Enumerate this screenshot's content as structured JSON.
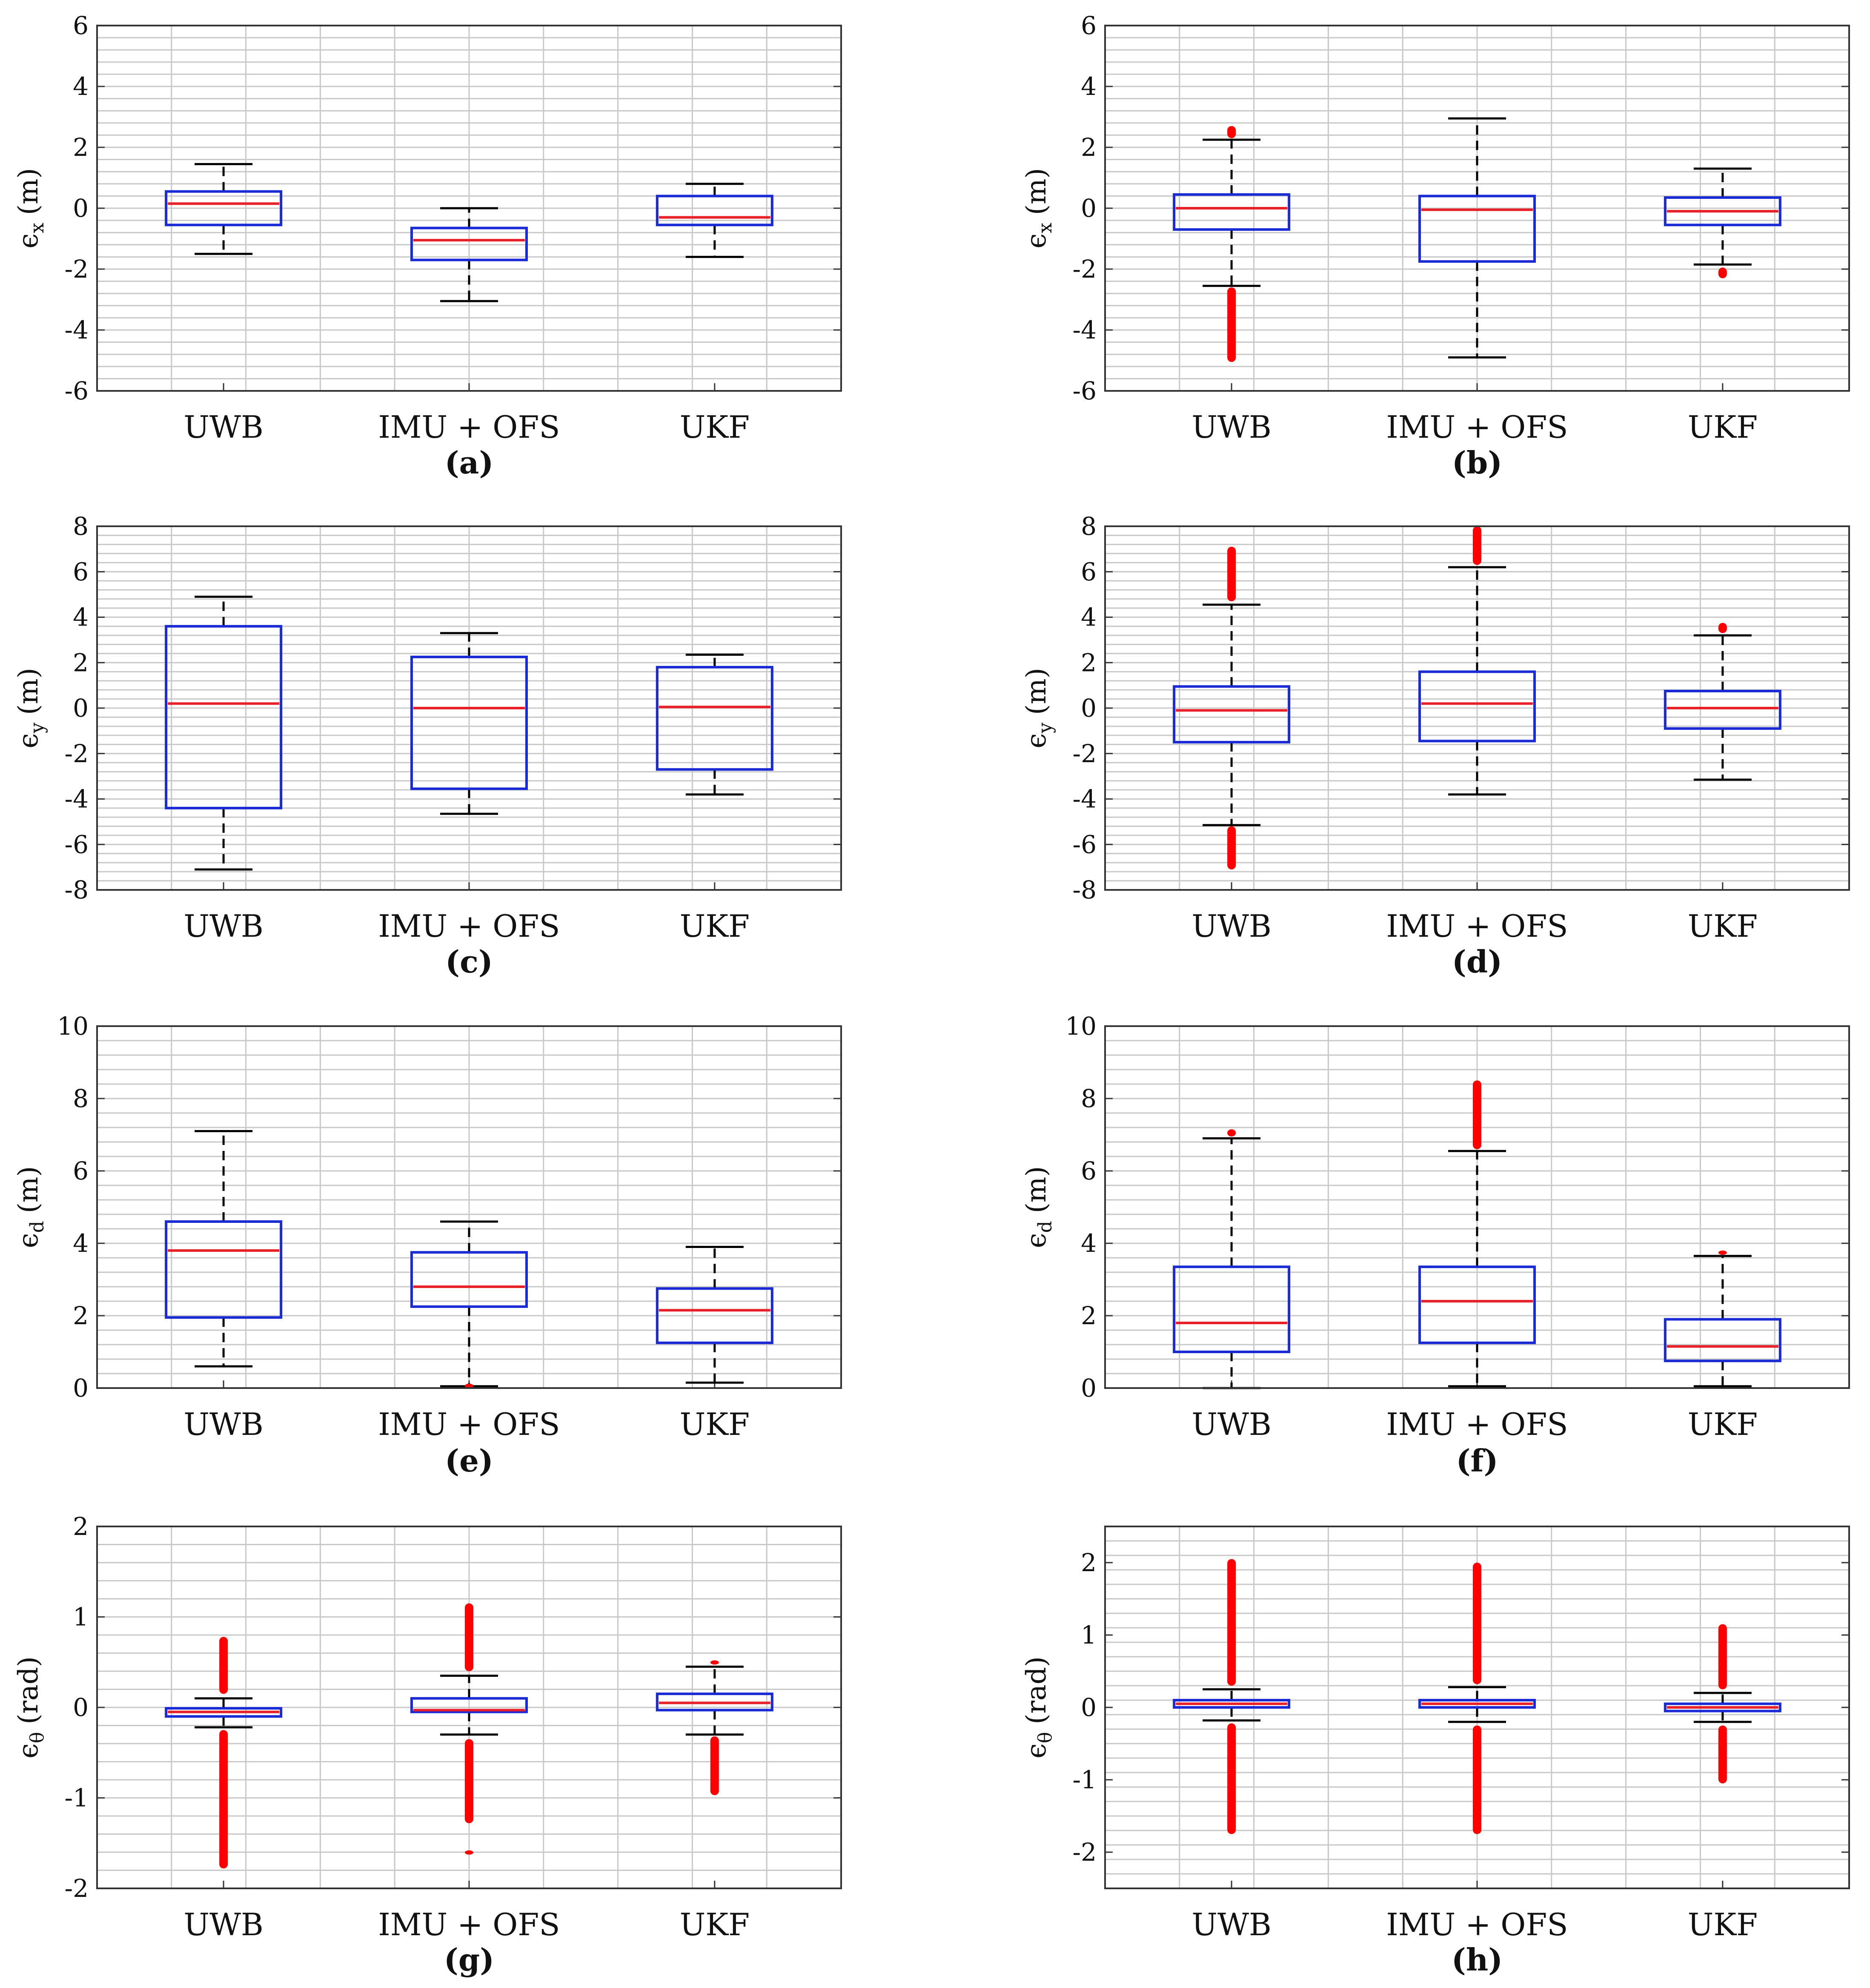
{
  "colors": {
    "box": "#1a2bd6",
    "median": "#e8202a",
    "whisker": "#000000",
    "outlier": "#ff0000",
    "grid": "#c8c8c8",
    "axes": "#333333"
  },
  "chart_data": [
    {
      "id": "a",
      "type": "box",
      "caption": "(a)",
      "ylabel_sym": "ϵ",
      "ylabel_sub": "x",
      "ylabel_unit": "(m)",
      "ylim": [
        -6,
        6
      ],
      "yticks": [
        -6,
        -4,
        -2,
        0,
        2,
        4,
        6
      ],
      "tick_labels": [
        "-6",
        "-4",
        "-2",
        "0",
        "2",
        "4",
        "6"
      ],
      "categories": [
        "UWB",
        "IMU + OFS",
        "UKF"
      ],
      "boxes": [
        {
          "wlo": -1.5,
          "q1": -0.55,
          "med": 0.15,
          "q3": 0.55,
          "whi": 1.45,
          "out_ranges": []
        },
        {
          "wlo": -3.05,
          "q1": -1.7,
          "med": -1.05,
          "q3": -0.65,
          "whi": 0.0,
          "out_ranges": []
        },
        {
          "wlo": -1.6,
          "q1": -0.55,
          "med": -0.3,
          "q3": 0.4,
          "whi": 0.8,
          "out_ranges": []
        }
      ]
    },
    {
      "id": "b",
      "type": "box",
      "caption": "(b)",
      "ylabel_sym": "ϵ",
      "ylabel_sub": "x",
      "ylabel_unit": "(m)",
      "ylim": [
        -6,
        6
      ],
      "yticks": [
        -6,
        -4,
        -2,
        0,
        2,
        4,
        6
      ],
      "tick_labels": [
        "-6",
        "-4",
        "-2",
        "0",
        "2",
        "4",
        "6"
      ],
      "categories": [
        "UWB",
        "IMU + OFS",
        "UKF"
      ],
      "boxes": [
        {
          "wlo": -2.55,
          "q1": -0.7,
          "med": 0.0,
          "q3": 0.45,
          "whi": 2.25,
          "out_ranges": [
            [
              2.3,
              2.7
            ],
            [
              -5.05,
              -2.6
            ]
          ]
        },
        {
          "wlo": -4.9,
          "q1": -1.75,
          "med": -0.05,
          "q3": 0.4,
          "whi": 2.95,
          "out_ranges": []
        },
        {
          "wlo": -1.85,
          "q1": -0.55,
          "med": -0.1,
          "q3": 0.35,
          "whi": 1.3,
          "out_ranges": [
            [
              -2.3,
              -1.95
            ]
          ]
        }
      ]
    },
    {
      "id": "c",
      "type": "box",
      "caption": "(c)",
      "ylabel_sym": "ϵ",
      "ylabel_sub": "y",
      "ylabel_unit": "(m)",
      "ylim": [
        -8,
        8
      ],
      "yticks": [
        -8,
        -6,
        -4,
        -2,
        0,
        2,
        4,
        6,
        8
      ],
      "tick_labels": [
        "-8",
        "-6",
        "-4",
        "-2",
        "0",
        "2",
        "4",
        "6",
        "8"
      ],
      "categories": [
        "UWB",
        "IMU + OFS",
        "UKF"
      ],
      "boxes": [
        {
          "wlo": -7.1,
          "q1": -4.4,
          "med": 0.2,
          "q3": 3.6,
          "whi": 4.9,
          "out_ranges": []
        },
        {
          "wlo": -4.65,
          "q1": -3.55,
          "med": 0.0,
          "q3": 2.25,
          "whi": 3.3,
          "out_ranges": []
        },
        {
          "wlo": -3.8,
          "q1": -2.7,
          "med": 0.05,
          "q3": 1.8,
          "whi": 2.35,
          "out_ranges": []
        }
      ]
    },
    {
      "id": "d",
      "type": "box",
      "caption": "(d)",
      "ylabel_sym": "ϵ",
      "ylabel_sub": "y",
      "ylabel_unit": "(m)",
      "ylim": [
        -8,
        8
      ],
      "yticks": [
        -8,
        -6,
        -4,
        -2,
        0,
        2,
        4,
        6,
        8
      ],
      "tick_labels": [
        "-8",
        "-6",
        "-4",
        "-2",
        "0",
        "2",
        "4",
        "6",
        "8"
      ],
      "categories": [
        "UWB",
        "IMU + OFS",
        "UKF"
      ],
      "boxes": [
        {
          "wlo": -5.15,
          "q1": -1.5,
          "med": -0.1,
          "q3": 0.95,
          "whi": 4.55,
          "out_ranges": [
            [
              4.7,
              7.1
            ],
            [
              -7.1,
              -5.2
            ]
          ]
        },
        {
          "wlo": -3.8,
          "q1": -1.45,
          "med": 0.2,
          "q3": 1.6,
          "whi": 6.2,
          "out_ranges": [
            [
              6.3,
              8.0
            ]
          ]
        },
        {
          "wlo": -3.15,
          "q1": -0.9,
          "med": 0.0,
          "q3": 0.75,
          "whi": 3.2,
          "out_ranges": [
            [
              3.3,
              3.75
            ]
          ]
        }
      ]
    },
    {
      "id": "e",
      "type": "box",
      "caption": "(e)",
      "ylabel_sym": "ϵ",
      "ylabel_sub": "d",
      "ylabel_unit": "(m)",
      "ylim": [
        0,
        10
      ],
      "yticks": [
        0,
        2,
        4,
        6,
        8,
        10
      ],
      "tick_labels": [
        "0",
        "2",
        "4",
        "6",
        "8",
        "10"
      ],
      "categories": [
        "UWB",
        "IMU + OFS",
        "UKF"
      ],
      "boxes": [
        {
          "wlo": 0.6,
          "q1": 1.95,
          "med": 3.8,
          "q3": 4.6,
          "whi": 7.1,
          "out_ranges": []
        },
        {
          "wlo": 0.05,
          "q1": 2.25,
          "med": 2.8,
          "q3": 3.75,
          "whi": 4.6,
          "out_ranges": [
            [
              0.0,
              0.12
            ]
          ]
        },
        {
          "wlo": 0.15,
          "q1": 1.25,
          "med": 2.15,
          "q3": 2.75,
          "whi": 3.9,
          "out_ranges": []
        }
      ]
    },
    {
      "id": "f",
      "type": "box",
      "caption": "(f)",
      "ylabel_sym": "ϵ",
      "ylabel_sub": "d",
      "ylabel_unit": "(m)",
      "ylim": [
        0,
        10
      ],
      "yticks": [
        0,
        2,
        4,
        6,
        8,
        10
      ],
      "tick_labels": [
        "0",
        "2",
        "4",
        "6",
        "8",
        "10"
      ],
      "categories": [
        "UWB",
        "IMU + OFS",
        "UKF"
      ],
      "boxes": [
        {
          "wlo": 0.0,
          "q1": 1.0,
          "med": 1.8,
          "q3": 3.35,
          "whi": 6.9,
          "out_ranges": [
            [
              6.95,
              7.15
            ]
          ]
        },
        {
          "wlo": 0.05,
          "q1": 1.25,
          "med": 2.4,
          "q3": 3.35,
          "whi": 6.55,
          "out_ranges": [
            [
              6.6,
              8.5
            ]
          ]
        },
        {
          "wlo": 0.05,
          "q1": 0.75,
          "med": 1.15,
          "q3": 1.9,
          "whi": 3.65,
          "out_ranges": [
            [
              3.7,
              3.8
            ]
          ]
        }
      ]
    },
    {
      "id": "g",
      "type": "box",
      "caption": "(g)",
      "ylabel_sym": "ϵ",
      "ylabel_sub": "θ",
      "ylabel_unit": "(rad)",
      "ylim": [
        -2,
        2
      ],
      "yticks": [
        -2,
        -1,
        0,
        1,
        2
      ],
      "tick_labels": [
        "-2",
        "-1",
        "0",
        "1",
        "2"
      ],
      "categories": [
        "UWB",
        "IMU + OFS",
        "UKF"
      ],
      "boxes": [
        {
          "wlo": -0.22,
          "q1": -0.1,
          "med": -0.05,
          "q3": -0.01,
          "whi": 0.1,
          "out_ranges": [
            [
              0.15,
              0.78
            ],
            [
              -1.78,
              -0.25
            ]
          ]
        },
        {
          "wlo": -0.3,
          "q1": -0.05,
          "med": -0.03,
          "q3": 0.1,
          "whi": 0.35,
          "out_ranges": [
            [
              0.4,
              1.15
            ],
            [
              -1.28,
              -0.35
            ],
            [
              -1.62,
              -1.58
            ]
          ]
        },
        {
          "wlo": -0.3,
          "q1": -0.03,
          "med": 0.05,
          "q3": 0.15,
          "whi": 0.45,
          "out_ranges": [
            [
              0.48,
              0.52
            ],
            [
              -0.97,
              -0.32
            ]
          ]
        }
      ]
    },
    {
      "id": "h",
      "type": "box",
      "caption": "(h)",
      "ylabel_sym": "ϵ",
      "ylabel_sub": "θ",
      "ylabel_unit": "(rad)",
      "ylim": [
        -2.5,
        2.5
      ],
      "yticks": [
        -2,
        -1,
        0,
        1,
        2
      ],
      "tick_labels": [
        "-2",
        "-1",
        "0",
        "1",
        "2"
      ],
      "categories": [
        "UWB",
        "IMU + OFS",
        "UKF"
      ],
      "boxes": [
        {
          "wlo": -0.18,
          "q1": 0.0,
          "med": 0.05,
          "q3": 0.1,
          "whi": 0.25,
          "out_ranges": [
            [
              0.3,
              2.05
            ],
            [
              -1.75,
              -0.22
            ]
          ]
        },
        {
          "wlo": -0.2,
          "q1": 0.0,
          "med": 0.05,
          "q3": 0.1,
          "whi": 0.28,
          "out_ranges": [
            [
              0.32,
              2.0
            ],
            [
              -1.75,
              -0.25
            ]
          ]
        },
        {
          "wlo": -0.2,
          "q1": -0.05,
          "med": 0.0,
          "q3": 0.05,
          "whi": 0.2,
          "out_ranges": [
            [
              0.25,
              1.15
            ],
            [
              -1.05,
              -0.25
            ]
          ]
        }
      ]
    }
  ]
}
